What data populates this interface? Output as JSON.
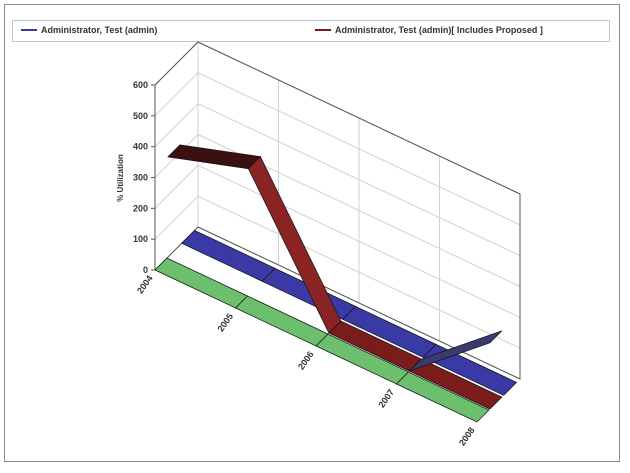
{
  "chart_data": {
    "type": "line",
    "view": "3d-ribbon",
    "categories": [
      "2004",
      "2005",
      "2006",
      "2007",
      "2008"
    ],
    "ylabel": "% Utilization",
    "xlabel": "",
    "ylim": [
      0,
      600
    ],
    "yticks": [
      0,
      100,
      200,
      300,
      400,
      500,
      600
    ],
    "grid": true,
    "legend_position": "top",
    "series": [
      {
        "name": "Administrator, Test (admin)",
        "color": "#3a3aa6",
        "values": [
          0,
          0,
          0,
          0,
          0
        ]
      },
      {
        "name": "Administrator, Test (admin)[ Includes Proposed ]",
        "color": "#7a1c1c",
        "values": [
          325,
          410,
          0,
          0,
          0
        ]
      },
      {
        "name": "",
        "color": "#6cbf6c",
        "values": [
          0,
          0,
          0,
          0,
          0
        ]
      }
    ],
    "extra_ribbon": {
      "color": "#3a3a70",
      "values": [
        0,
        0,
        0,
        0,
        215
      ]
    }
  }
}
